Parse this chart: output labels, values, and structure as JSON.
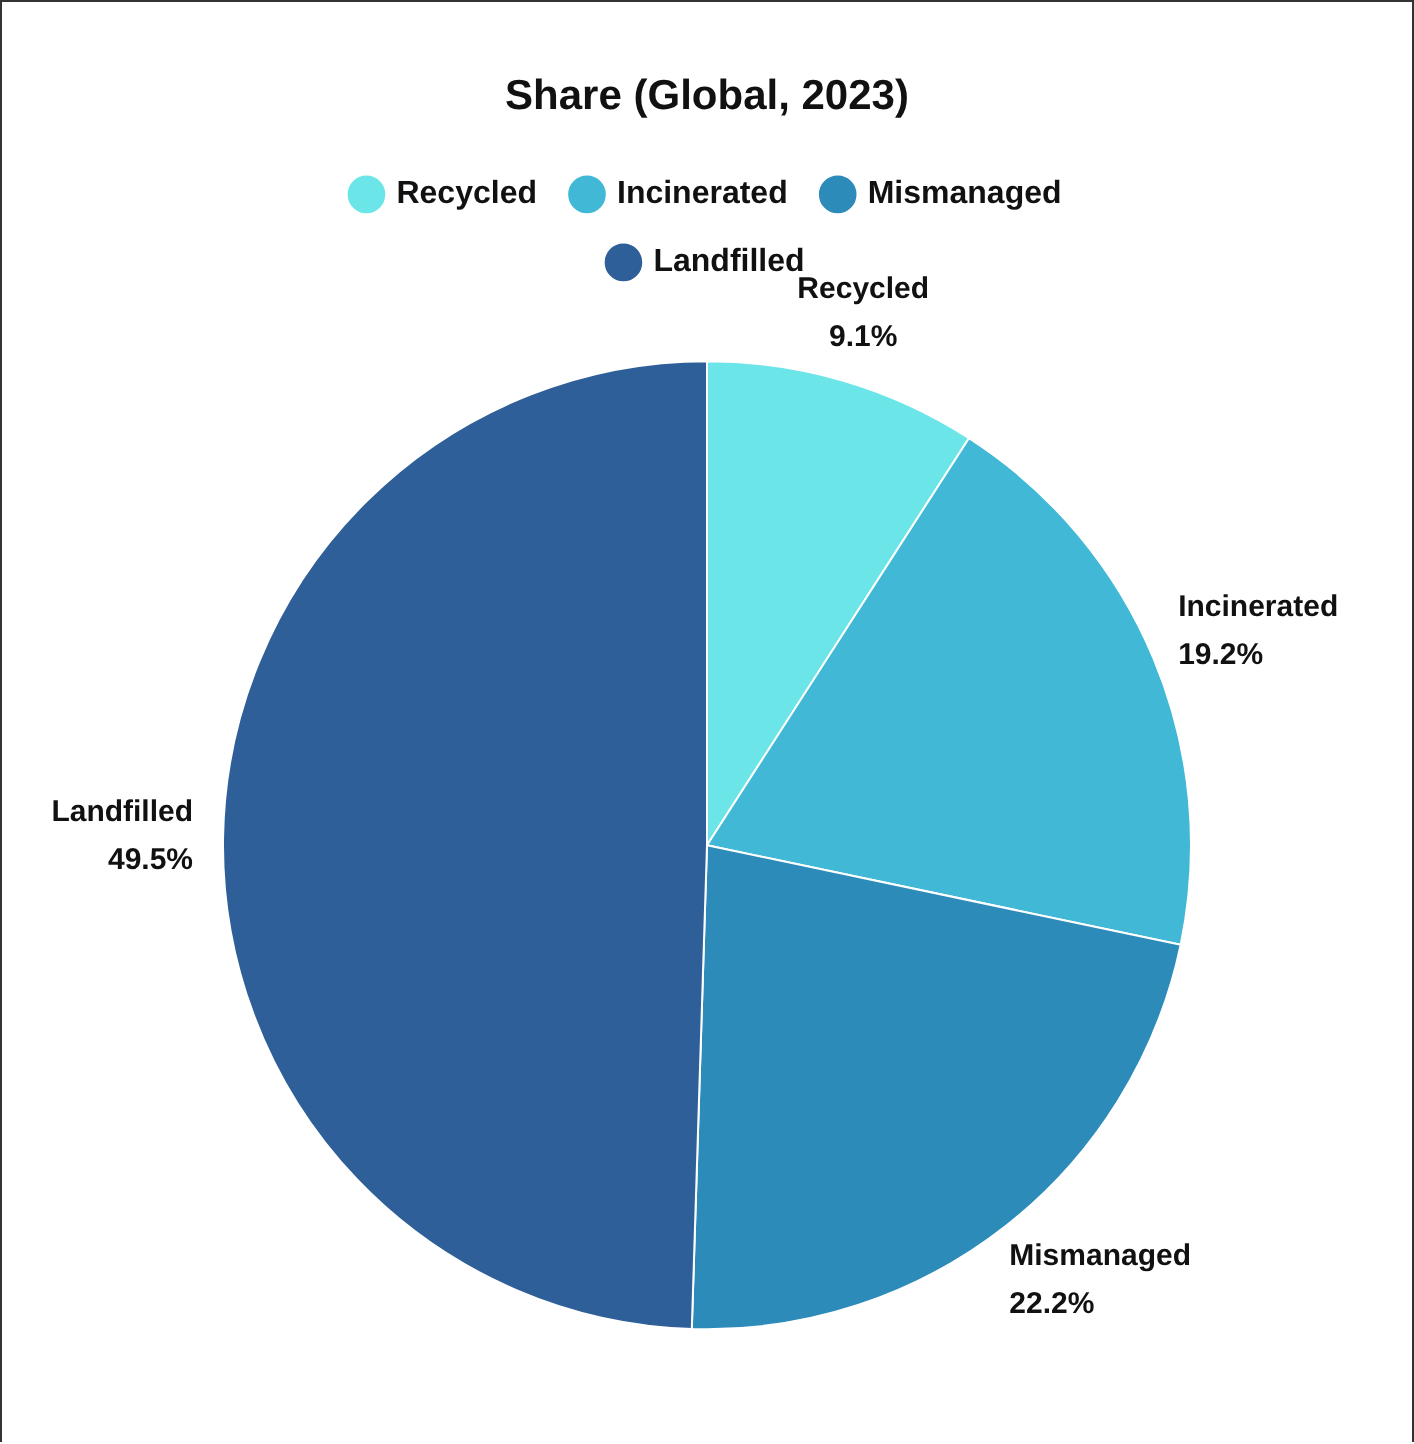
{
  "chart_data": {
    "type": "pie",
    "title": "Share (Global, 2023)",
    "categories": [
      "Recycled",
      "Incinerated",
      "Mismanaged",
      "Landfilled"
    ],
    "values": [
      9.1,
      19.2,
      22.2,
      49.5
    ],
    "colors": [
      "#6ce5e8",
      "#41b8d5",
      "#2d8bba",
      "#2f5f98"
    ],
    "value_labels": [
      "9.1%",
      "19.2%",
      "22.2%",
      "49.5%"
    ],
    "legend": "top"
  }
}
